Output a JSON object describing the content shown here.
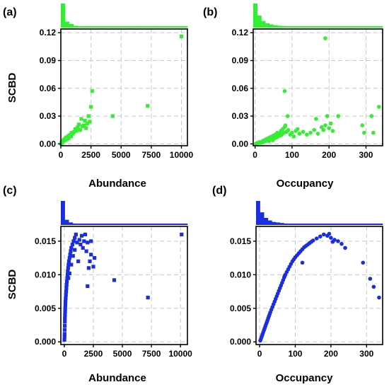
{
  "figure": {
    "colors": {
      "green": "#33ee33",
      "blue": "#1a2ee0",
      "grid": "#c8c8c8",
      "axis": "#000000"
    }
  },
  "chart_data": [
    {
      "panel": "(a)",
      "type": "scatter",
      "xlabel": "Abundance",
      "ylabel": "SCBD",
      "xlim": [
        0,
        10500
      ],
      "ylim": [
        -0.002,
        0.124
      ],
      "xticks": [
        0,
        2500,
        5000,
        7500,
        10000
      ],
      "yticks": [
        0.0,
        0.03,
        0.06,
        0.09,
        0.12
      ],
      "ytick_labels": [
        "0.00",
        "0.03",
        "0.06",
        "0.09",
        "0.12"
      ],
      "grid": true,
      "marker": "square",
      "color": "#33ee33",
      "histogram": {
        "axis": "x",
        "bins": 30,
        "counts": [
          120,
          30,
          18,
          9,
          5,
          3,
          3,
          2,
          2,
          1,
          1,
          1,
          1,
          1,
          1,
          1,
          1,
          1,
          1,
          1,
          1,
          1,
          1,
          1,
          1,
          1,
          1,
          1,
          1,
          1
        ]
      },
      "points": [
        {
          "x": 20,
          "y": 0.0
        },
        {
          "x": 40,
          "y": 0.001
        },
        {
          "x": 60,
          "y": 0.001
        },
        {
          "x": 90,
          "y": 0.002
        },
        {
          "x": 120,
          "y": 0.002
        },
        {
          "x": 150,
          "y": 0.003
        },
        {
          "x": 200,
          "y": 0.003
        },
        {
          "x": 250,
          "y": 0.004
        },
        {
          "x": 300,
          "y": 0.005
        },
        {
          "x": 350,
          "y": 0.004
        },
        {
          "x": 400,
          "y": 0.006
        },
        {
          "x": 450,
          "y": 0.007
        },
        {
          "x": 500,
          "y": 0.005
        },
        {
          "x": 600,
          "y": 0.008
        },
        {
          "x": 650,
          "y": 0.006
        },
        {
          "x": 700,
          "y": 0.009
        },
        {
          "x": 800,
          "y": 0.01
        },
        {
          "x": 850,
          "y": 0.008
        },
        {
          "x": 900,
          "y": 0.012
        },
        {
          "x": 1000,
          "y": 0.011
        },
        {
          "x": 1100,
          "y": 0.013
        },
        {
          "x": 1200,
          "y": 0.016
        },
        {
          "x": 1300,
          "y": 0.014
        },
        {
          "x": 1400,
          "y": 0.018
        },
        {
          "x": 1500,
          "y": 0.021
        },
        {
          "x": 1600,
          "y": 0.015
        },
        {
          "x": 1700,
          "y": 0.027
        },
        {
          "x": 1800,
          "y": 0.019
        },
        {
          "x": 1900,
          "y": 0.02
        },
        {
          "x": 2000,
          "y": 0.025
        },
        {
          "x": 2100,
          "y": 0.017
        },
        {
          "x": 2200,
          "y": 0.022
        },
        {
          "x": 2300,
          "y": 0.03
        },
        {
          "x": 2400,
          "y": 0.024
        },
        {
          "x": 2500,
          "y": 0.04
        },
        {
          "x": 2600,
          "y": 0.057
        },
        {
          "x": 4300,
          "y": 0.03
        },
        {
          "x": 7200,
          "y": 0.041
        },
        {
          "x": 10000,
          "y": 0.116
        }
      ]
    },
    {
      "panel": "(b)",
      "type": "scatter",
      "xlabel": "Occupancy",
      "ylabel": "",
      "xlim": [
        -5,
        345
      ],
      "ylim": [
        -0.002,
        0.124
      ],
      "xticks": [
        0,
        100,
        200,
        300
      ],
      "yticks": [
        0.0,
        0.03,
        0.06,
        0.09,
        0.12
      ],
      "ytick_labels": [
        "0.00",
        "0.03",
        "0.06",
        "0.09",
        "0.12"
      ],
      "grid": true,
      "marker": "circle",
      "color": "#33ee33",
      "histogram": {
        "axis": "x",
        "bins": 32,
        "counts": [
          90,
          45,
          25,
          16,
          12,
          9,
          7,
          6,
          5,
          4,
          4,
          3,
          3,
          3,
          2,
          2,
          2,
          2,
          2,
          2,
          1,
          1,
          1,
          1,
          1,
          1,
          1,
          1,
          1,
          1,
          1,
          1
        ]
      },
      "points": [
        {
          "x": 2,
          "y": 0.0
        },
        {
          "x": 4,
          "y": 0.0
        },
        {
          "x": 6,
          "y": 0.001
        },
        {
          "x": 8,
          "y": 0.001
        },
        {
          "x": 10,
          "y": 0.001
        },
        {
          "x": 12,
          "y": 0.002
        },
        {
          "x": 15,
          "y": 0.001
        },
        {
          "x": 18,
          "y": 0.002
        },
        {
          "x": 20,
          "y": 0.003
        },
        {
          "x": 22,
          "y": 0.002
        },
        {
          "x": 25,
          "y": 0.004
        },
        {
          "x": 28,
          "y": 0.003
        },
        {
          "x": 30,
          "y": 0.005
        },
        {
          "x": 33,
          "y": 0.004
        },
        {
          "x": 35,
          "y": 0.006
        },
        {
          "x": 38,
          "y": 0.003
        },
        {
          "x": 40,
          "y": 0.007
        },
        {
          "x": 42,
          "y": 0.005
        },
        {
          "x": 45,
          "y": 0.008
        },
        {
          "x": 48,
          "y": 0.004
        },
        {
          "x": 50,
          "y": 0.009
        },
        {
          "x": 52,
          "y": 0.006
        },
        {
          "x": 55,
          "y": 0.01
        },
        {
          "x": 58,
          "y": 0.007
        },
        {
          "x": 60,
          "y": 0.012
        },
        {
          "x": 62,
          "y": 0.008
        },
        {
          "x": 65,
          "y": 0.011
        },
        {
          "x": 68,
          "y": 0.009
        },
        {
          "x": 70,
          "y": 0.014
        },
        {
          "x": 72,
          "y": 0.01
        },
        {
          "x": 75,
          "y": 0.016
        },
        {
          "x": 78,
          "y": 0.012
        },
        {
          "x": 80,
          "y": 0.018
        },
        {
          "x": 82,
          "y": 0.02
        },
        {
          "x": 85,
          "y": 0.013
        },
        {
          "x": 88,
          "y": 0.03
        },
        {
          "x": 90,
          "y": 0.015
        },
        {
          "x": 95,
          "y": 0.01
        },
        {
          "x": 100,
          "y": 0.012
        },
        {
          "x": 105,
          "y": 0.008
        },
        {
          "x": 110,
          "y": 0.014
        },
        {
          "x": 115,
          "y": 0.016
        },
        {
          "x": 120,
          "y": 0.011
        },
        {
          "x": 130,
          "y": 0.013
        },
        {
          "x": 140,
          "y": 0.01
        },
        {
          "x": 150,
          "y": 0.012
        },
        {
          "x": 160,
          "y": 0.015
        },
        {
          "x": 165,
          "y": 0.027
        },
        {
          "x": 170,
          "y": 0.011
        },
        {
          "x": 180,
          "y": 0.018
        },
        {
          "x": 185,
          "y": 0.015
        },
        {
          "x": 190,
          "y": 0.02
        },
        {
          "x": 195,
          "y": 0.03
        },
        {
          "x": 200,
          "y": 0.017
        },
        {
          "x": 205,
          "y": 0.022
        },
        {
          "x": 210,
          "y": 0.014
        },
        {
          "x": 225,
          "y": 0.03
        },
        {
          "x": 80,
          "y": 0.057
        },
        {
          "x": 190,
          "y": 0.114
        },
        {
          "x": 290,
          "y": 0.02
        },
        {
          "x": 295,
          "y": 0.012
        },
        {
          "x": 315,
          "y": 0.03
        },
        {
          "x": 320,
          "y": 0.012
        },
        {
          "x": 335,
          "y": 0.04
        }
      ]
    },
    {
      "panel": "(c)",
      "type": "scatter",
      "xlabel": "Abundance",
      "ylabel": "SCBD",
      "xlim": [
        -300,
        10600
      ],
      "ylim": [
        -0.0004,
        0.0172
      ],
      "xticks": [
        0,
        2500,
        5000,
        7500,
        10000
      ],
      "yticks": [
        0.0,
        0.005,
        0.01,
        0.015
      ],
      "ytick_labels": [
        "0.000",
        "0.005",
        "0.010",
        "0.015"
      ],
      "grid": true,
      "marker": "square",
      "color": "#1a2ee0",
      "histogram": {
        "axis": "x",
        "bins": 32,
        "counts": [
          130,
          28,
          14,
          8,
          5,
          4,
          3,
          2,
          2,
          1,
          1,
          1,
          1,
          1,
          1,
          1,
          1,
          1,
          1,
          1,
          1,
          1,
          1,
          1,
          1,
          1,
          1,
          1,
          1,
          1,
          1,
          1
        ]
      },
      "points": [
        {
          "x": 10,
          "y": 0.0003
        },
        {
          "x": 20,
          "y": 0.0008
        },
        {
          "x": 25,
          "y": 0.0012
        },
        {
          "x": 30,
          "y": 0.0018
        },
        {
          "x": 40,
          "y": 0.0024
        },
        {
          "x": 45,
          "y": 0.003
        },
        {
          "x": 50,
          "y": 0.0035
        },
        {
          "x": 60,
          "y": 0.004
        },
        {
          "x": 70,
          "y": 0.0045
        },
        {
          "x": 80,
          "y": 0.005
        },
        {
          "x": 90,
          "y": 0.0055
        },
        {
          "x": 100,
          "y": 0.006
        },
        {
          "x": 120,
          "y": 0.0065
        },
        {
          "x": 140,
          "y": 0.007
        },
        {
          "x": 160,
          "y": 0.0075
        },
        {
          "x": 180,
          "y": 0.008
        },
        {
          "x": 200,
          "y": 0.0085
        },
        {
          "x": 220,
          "y": 0.009
        },
        {
          "x": 250,
          "y": 0.0095
        },
        {
          "x": 280,
          "y": 0.01
        },
        {
          "x": 300,
          "y": 0.0105
        },
        {
          "x": 330,
          "y": 0.011
        },
        {
          "x": 360,
          "y": 0.0115
        },
        {
          "x": 400,
          "y": 0.012
        },
        {
          "x": 450,
          "y": 0.0125
        },
        {
          "x": 500,
          "y": 0.013
        },
        {
          "x": 550,
          "y": 0.0135
        },
        {
          "x": 600,
          "y": 0.014
        },
        {
          "x": 700,
          "y": 0.0145
        },
        {
          "x": 800,
          "y": 0.015
        },
        {
          "x": 900,
          "y": 0.0155
        },
        {
          "x": 1000,
          "y": 0.016
        },
        {
          "x": 350,
          "y": 0.0095
        },
        {
          "x": 450,
          "y": 0.0102
        },
        {
          "x": 600,
          "y": 0.0115
        },
        {
          "x": 750,
          "y": 0.0128
        },
        {
          "x": 900,
          "y": 0.0137
        },
        {
          "x": 1100,
          "y": 0.0148
        },
        {
          "x": 1200,
          "y": 0.012
        },
        {
          "x": 1300,
          "y": 0.0152
        },
        {
          "x": 1400,
          "y": 0.0145
        },
        {
          "x": 1500,
          "y": 0.0158
        },
        {
          "x": 1600,
          "y": 0.014
        },
        {
          "x": 1700,
          "y": 0.015
        },
        {
          "x": 1800,
          "y": 0.016
        },
        {
          "x": 1900,
          "y": 0.0135
        },
        {
          "x": 2000,
          "y": 0.0148
        },
        {
          "x": 2100,
          "y": 0.011
        },
        {
          "x": 2200,
          "y": 0.012
        },
        {
          "x": 2300,
          "y": 0.013
        },
        {
          "x": 2500,
          "y": 0.0112
        },
        {
          "x": 2600,
          "y": 0.0125
        },
        {
          "x": 2000,
          "y": 0.0083
        },
        {
          "x": 2300,
          "y": 0.015
        },
        {
          "x": 4300,
          "y": 0.0092
        },
        {
          "x": 7200,
          "y": 0.0066
        },
        {
          "x": 10100,
          "y": 0.016
        }
      ]
    },
    {
      "panel": "(d)",
      "type": "scatter",
      "xlabel": "Occupancy",
      "ylabel": "",
      "xlim": [
        -10,
        345
      ],
      "ylim": [
        -0.0004,
        0.0172
      ],
      "xticks": [
        0,
        100,
        200,
        300
      ],
      "yticks": [
        0.0,
        0.005,
        0.01,
        0.015
      ],
      "ytick_labels": [
        "0.000",
        "0.005",
        "0.010",
        "0.015"
      ],
      "grid": true,
      "marker": "circle",
      "color": "#1a2ee0",
      "histogram": {
        "axis": "x",
        "bins": 32,
        "counts": [
          95,
          50,
          28,
          18,
          12,
          10,
          8,
          6,
          5,
          5,
          4,
          4,
          3,
          3,
          3,
          2,
          2,
          2,
          2,
          2,
          2,
          1,
          1,
          1,
          1,
          1,
          1,
          1,
          1,
          1,
          1,
          1
        ]
      },
      "points": [
        {
          "x": 2,
          "y": 0.0002
        },
        {
          "x": 4,
          "y": 0.0005
        },
        {
          "x": 6,
          "y": 0.0008
        },
        {
          "x": 8,
          "y": 0.0011
        },
        {
          "x": 10,
          "y": 0.0014
        },
        {
          "x": 12,
          "y": 0.0017
        },
        {
          "x": 14,
          "y": 0.002
        },
        {
          "x": 16,
          "y": 0.0023
        },
        {
          "x": 18,
          "y": 0.0026
        },
        {
          "x": 20,
          "y": 0.0029
        },
        {
          "x": 22,
          "y": 0.0032
        },
        {
          "x": 24,
          "y": 0.0035
        },
        {
          "x": 26,
          "y": 0.0038
        },
        {
          "x": 28,
          "y": 0.0041
        },
        {
          "x": 30,
          "y": 0.0044
        },
        {
          "x": 33,
          "y": 0.0048
        },
        {
          "x": 36,
          "y": 0.0052
        },
        {
          "x": 39,
          "y": 0.0056
        },
        {
          "x": 42,
          "y": 0.006
        },
        {
          "x": 45,
          "y": 0.0064
        },
        {
          "x": 48,
          "y": 0.0068
        },
        {
          "x": 51,
          "y": 0.0072
        },
        {
          "x": 54,
          "y": 0.0076
        },
        {
          "x": 57,
          "y": 0.008
        },
        {
          "x": 60,
          "y": 0.0084
        },
        {
          "x": 63,
          "y": 0.0088
        },
        {
          "x": 66,
          "y": 0.0092
        },
        {
          "x": 69,
          "y": 0.0096
        },
        {
          "x": 72,
          "y": 0.01
        },
        {
          "x": 76,
          "y": 0.0104
        },
        {
          "x": 80,
          "y": 0.0108
        },
        {
          "x": 84,
          "y": 0.0112
        },
        {
          "x": 88,
          "y": 0.0116
        },
        {
          "x": 92,
          "y": 0.012
        },
        {
          "x": 96,
          "y": 0.0123
        },
        {
          "x": 100,
          "y": 0.0126
        },
        {
          "x": 105,
          "y": 0.0129
        },
        {
          "x": 110,
          "y": 0.0132
        },
        {
          "x": 115,
          "y": 0.0135
        },
        {
          "x": 120,
          "y": 0.0138
        },
        {
          "x": 125,
          "y": 0.0141
        },
        {
          "x": 130,
          "y": 0.0143
        },
        {
          "x": 135,
          "y": 0.0145
        },
        {
          "x": 140,
          "y": 0.0147
        },
        {
          "x": 145,
          "y": 0.0149
        },
        {
          "x": 150,
          "y": 0.0151
        },
        {
          "x": 160,
          "y": 0.0154
        },
        {
          "x": 170,
          "y": 0.0157
        },
        {
          "x": 180,
          "y": 0.016
        },
        {
          "x": 190,
          "y": 0.0158
        },
        {
          "x": 195,
          "y": 0.0161
        },
        {
          "x": 200,
          "y": 0.0155
        },
        {
          "x": 205,
          "y": 0.0149
        },
        {
          "x": 210,
          "y": 0.0152
        },
        {
          "x": 220,
          "y": 0.015
        },
        {
          "x": 230,
          "y": 0.0146
        },
        {
          "x": 240,
          "y": 0.014
        },
        {
          "x": 70,
          "y": 0.0098
        },
        {
          "x": 120,
          "y": 0.0118
        },
        {
          "x": 290,
          "y": 0.0118
        },
        {
          "x": 310,
          "y": 0.0094
        },
        {
          "x": 320,
          "y": 0.0082
        },
        {
          "x": 335,
          "y": 0.0066
        }
      ]
    }
  ]
}
